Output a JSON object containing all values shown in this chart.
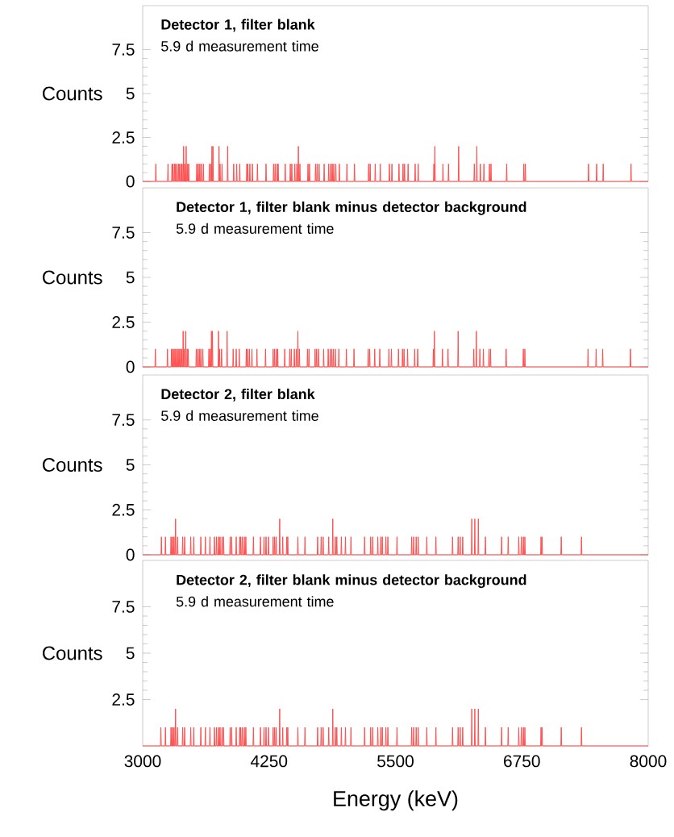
{
  "chart_data": [
    {
      "type": "line",
      "title": "Detector 1, filter blank",
      "subtitle": "5.9 d measurement time",
      "ylabel": "Counts",
      "color": "#ff4d4d",
      "xlim": [
        3000,
        8000
      ],
      "ylim": [
        0,
        10
      ],
      "yticks": [
        0,
        2.5,
        5,
        7.5
      ],
      "tick_labels": "y",
      "x": [
        3000,
        3126,
        3130,
        3134,
        3246,
        3250,
        3254,
        3286,
        3290,
        3294,
        3296,
        3300,
        3304,
        3311,
        3315,
        3319,
        3321,
        3325,
        3329,
        3336,
        3340,
        3344,
        3351,
        3355,
        3359,
        3361,
        3365,
        3369,
        3376,
        3380,
        3384,
        3386,
        3390,
        3394,
        3401,
        3405,
        3409,
        3411,
        3415,
        3419,
        3426,
        3430,
        3434,
        3441,
        3445,
        3449,
        3451,
        3455,
        3459,
        3531,
        3535,
        3539,
        3546,
        3550,
        3554,
        3561,
        3565,
        3569,
        3576,
        3580,
        3584,
        3596,
        3600,
        3604,
        3656,
        3660,
        3664,
        3671,
        3675,
        3679,
        3681,
        3685,
        3689,
        3691,
        3695,
        3699,
        3751,
        3755,
        3759,
        3761,
        3765,
        3769,
        3781,
        3785,
        3789,
        3836,
        3840,
        3844,
        3896,
        3900,
        3904,
        3926,
        3930,
        3934,
        3956,
        3960,
        3964,
        4026,
        4030,
        4034,
        4036,
        4040,
        4044,
        4056,
        4060,
        4064,
        4081,
        4085,
        4089,
        4131,
        4135,
        4139,
        4216,
        4220,
        4224,
        4291,
        4295,
        4299,
        4306,
        4310,
        4314,
        4326,
        4330,
        4334,
        4336,
        4340,
        4344,
        4406,
        4410,
        4414,
        4456,
        4460,
        4464,
        4471,
        4475,
        4479,
        4501,
        4505,
        4509,
        4521,
        4525,
        4529,
        4536,
        4540,
        4544,
        4551,
        4555,
        4559,
        4631,
        4635,
        4639,
        4646,
        4650,
        4654,
        4706,
        4710,
        4714,
        4721,
        4725,
        4729,
        4741,
        4745,
        4749,
        4791,
        4795,
        4799,
        4836,
        4840,
        4844,
        4856,
        4860,
        4864,
        4871,
        4875,
        4879,
        4886,
        4890,
        4894,
        4906,
        4910,
        4914,
        4941,
        4945,
        4949,
        5016,
        5020,
        5024,
        5091,
        5095,
        5099,
        5231,
        5235,
        5239,
        5246,
        5250,
        5254,
        5296,
        5300,
        5304,
        5346,
        5350,
        5354,
        5436,
        5440,
        5444,
        5461,
        5465,
        5469,
        5531,
        5535,
        5539,
        5571,
        5575,
        5579,
        5586,
        5590,
        5594,
        5621,
        5625,
        5629,
        5691,
        5695,
        5699,
        5721,
        5725,
        5729,
        5876,
        5880,
        5884,
        5886,
        5890,
        5894,
        5966,
        5970,
        5974,
        6021,
        6025,
        6029,
        6121,
        6125,
        6129,
        6276,
        6280,
        6284,
        6301,
        6305,
        6309,
        6336,
        6340,
        6344,
        6371,
        6375,
        6379,
        6426,
        6430,
        6434,
        6441,
        6445,
        6449,
        6596,
        6600,
        6604,
        6766,
        6770,
        6774,
        6781,
        6785,
        6789,
        7406,
        7410,
        7414,
        7486,
        7490,
        7494,
        7551,
        7555,
        7559,
        7826,
        7830,
        7834,
        8000
      ],
      "values": [
        0,
        0,
        1,
        0,
        0,
        1,
        0,
        0,
        1,
        0,
        0,
        1,
        0,
        0,
        1,
        0,
        0,
        1,
        0,
        0,
        1,
        0,
        0,
        1,
        0,
        0,
        1,
        0,
        0,
        1,
        0,
        0,
        1,
        0,
        0,
        2,
        0,
        0,
        1,
        0,
        0,
        2,
        0,
        0,
        1,
        0,
        0,
        1,
        0,
        0,
        1,
        0,
        0,
        1,
        0,
        0,
        1,
        0,
        0,
        1,
        0,
        0,
        1,
        0,
        0,
        1,
        0,
        0,
        1,
        0,
        0,
        2,
        0,
        0,
        2,
        0,
        0,
        2,
        0,
        0,
        1,
        0,
        0,
        1,
        0,
        0,
        2,
        0,
        0,
        1,
        0,
        0,
        1,
        0,
        0,
        1,
        0,
        0,
        1,
        0,
        0,
        1,
        0,
        0,
        1,
        0,
        0,
        1,
        0,
        0,
        1,
        0,
        0,
        1,
        0,
        0,
        1,
        0,
        0,
        1,
        0,
        0,
        1,
        0,
        0,
        1,
        0,
        0,
        1,
        0,
        0,
        1,
        0,
        0,
        1,
        0,
        0,
        1,
        0,
        0,
        1,
        0,
        0,
        2,
        0,
        0,
        1,
        0,
        0,
        1,
        0,
        0,
        1,
        0,
        0,
        1,
        0,
        0,
        1,
        0,
        0,
        1,
        0,
        0,
        1,
        0,
        0,
        1,
        0,
        0,
        1,
        0,
        0,
        1,
        0,
        0,
        1,
        0,
        0,
        1,
        0,
        0,
        1,
        0,
        0,
        1,
        0,
        0,
        1,
        0,
        0,
        1,
        0,
        0,
        1,
        0,
        0,
        1,
        0,
        0,
        1,
        0,
        0,
        1,
        0,
        0,
        1,
        0,
        0,
        1,
        0,
        0,
        1,
        0,
        0,
        1,
        0,
        0,
        1,
        0,
        0,
        1,
        0,
        0,
        1,
        0,
        0,
        1,
        0,
        0,
        2,
        0,
        0,
        1,
        0,
        0,
        1,
        0,
        0,
        2,
        0,
        0,
        1,
        0,
        0,
        2,
        0,
        0,
        1,
        0,
        0,
        1,
        0,
        0,
        1,
        0,
        0,
        1,
        0,
        0,
        1,
        0,
        0,
        1,
        0,
        0,
        1,
        0,
        0,
        1,
        0,
        0,
        1,
        0,
        0,
        1,
        0,
        0,
        1,
        0,
        0
      ]
    },
    {
      "type": "line",
      "title": "Detector 1, filter blank minus detector background",
      "subtitle": "5.9 d measurement time",
      "ylabel": "Counts",
      "color": "#ff4d4d",
      "xlim": [
        3000,
        8000
      ],
      "ylim": [
        0,
        10
      ],
      "yticks": [
        0,
        2.5,
        5,
        7.5
      ],
      "tick_labels": "y",
      "x": [
        3000,
        3121,
        3125,
        3129,
        3241,
        3245,
        3249,
        3281,
        3285,
        3289,
        3291,
        3295,
        3299,
        3306,
        3310,
        3314,
        3316,
        3320,
        3324,
        3331,
        3335,
        3339,
        3346,
        3350,
        3354,
        3356,
        3360,
        3364,
        3371,
        3375,
        3379,
        3381,
        3385,
        3389,
        3396,
        3400,
        3404,
        3406,
        3410,
        3414,
        3421,
        3425,
        3429,
        3436,
        3440,
        3444,
        3446,
        3450,
        3454,
        3526,
        3530,
        3534,
        3541,
        3545,
        3549,
        3556,
        3560,
        3564,
        3571,
        3575,
        3579,
        3591,
        3595,
        3599,
        3651,
        3655,
        3659,
        3666,
        3670,
        3674,
        3676,
        3680,
        3684,
        3686,
        3690,
        3694,
        3746,
        3750,
        3754,
        3756,
        3760,
        3764,
        3776,
        3780,
        3784,
        3831,
        3835,
        3839,
        3891,
        3895,
        3899,
        3921,
        3925,
        3929,
        3951,
        3955,
        3959,
        4021,
        4025,
        4029,
        4031,
        4035,
        4039,
        4051,
        4055,
        4059,
        4076,
        4080,
        4084,
        4126,
        4130,
        4134,
        4211,
        4215,
        4219,
        4286,
        4290,
        4294,
        4301,
        4305,
        4309,
        4321,
        4325,
        4329,
        4331,
        4335,
        4339,
        4401,
        4405,
        4409,
        4451,
        4455,
        4459,
        4466,
        4470,
        4474,
        4496,
        4500,
        4504,
        4516,
        4520,
        4524,
        4531,
        4535,
        4539,
        4546,
        4550,
        4554,
        4626,
        4630,
        4634,
        4641,
        4645,
        4649,
        4701,
        4705,
        4709,
        4716,
        4720,
        4724,
        4736,
        4740,
        4744,
        4786,
        4790,
        4794,
        4831,
        4835,
        4839,
        4851,
        4855,
        4859,
        4866,
        4870,
        4874,
        4881,
        4885,
        4889,
        4901,
        4905,
        4909,
        4936,
        4940,
        4944,
        5011,
        5015,
        5019,
        5086,
        5090,
        5094,
        5226,
        5230,
        5234,
        5241,
        5245,
        5249,
        5291,
        5295,
        5299,
        5341,
        5345,
        5349,
        5431,
        5435,
        5439,
        5456,
        5460,
        5464,
        5526,
        5530,
        5534,
        5566,
        5570,
        5574,
        5581,
        5585,
        5589,
        5616,
        5620,
        5624,
        5686,
        5690,
        5694,
        5716,
        5720,
        5724,
        5871,
        5875,
        5879,
        5881,
        5885,
        5889,
        5961,
        5965,
        5969,
        6016,
        6020,
        6024,
        6116,
        6120,
        6124,
        6271,
        6275,
        6279,
        6296,
        6300,
        6304,
        6331,
        6335,
        6339,
        6366,
        6370,
        6374,
        6421,
        6425,
        6429,
        6436,
        6440,
        6444,
        6591,
        6595,
        6599,
        6761,
        6765,
        6769,
        6776,
        6780,
        6784,
        7401,
        7405,
        7409,
        7481,
        7485,
        7489,
        7546,
        7550,
        7554,
        7821,
        7825,
        7829,
        8000
      ],
      "values": [
        0,
        0,
        1,
        0,
        0,
        1,
        0,
        0,
        1,
        0,
        0,
        1,
        0,
        0,
        1,
        0,
        0,
        1,
        0,
        0,
        1,
        0,
        0,
        1,
        0,
        0,
        1,
        0,
        0,
        1,
        0,
        0,
        1,
        0,
        0,
        2,
        0,
        0,
        1,
        0,
        0,
        2,
        0,
        0,
        1,
        0,
        0,
        1,
        0,
        0,
        1,
        0,
        0,
        1,
        0,
        0,
        1,
        0,
        0,
        1,
        0,
        0,
        1,
        0,
        0,
        1,
        0,
        0,
        1,
        0,
        0,
        2,
        0,
        0,
        2,
        0,
        0,
        2,
        0,
        0,
        1,
        0,
        0,
        1,
        0,
        0,
        2,
        0,
        0,
        1,
        0,
        0,
        1,
        0,
        0,
        1,
        0,
        0,
        1,
        0,
        0,
        1,
        0,
        0,
        1,
        0,
        0,
        1,
        0,
        0,
        1,
        0,
        0,
        1,
        0,
        0,
        1,
        0,
        0,
        1,
        0,
        0,
        1,
        0,
        0,
        1,
        0,
        0,
        1,
        0,
        0,
        1,
        0,
        0,
        1,
        0,
        0,
        1,
        0,
        0,
        1,
        0,
        0,
        2,
        0,
        0,
        1,
        0,
        0,
        1,
        0,
        0,
        1,
        0,
        0,
        1,
        0,
        0,
        1,
        0,
        0,
        1,
        0,
        0,
        1,
        0,
        0,
        1,
        0,
        0,
        1,
        0,
        0,
        1,
        0,
        0,
        1,
        0,
        0,
        1,
        0,
        0,
        1,
        0,
        0,
        1,
        0,
        0,
        1,
        0,
        0,
        1,
        0,
        0,
        1,
        0,
        0,
        1,
        0,
        0,
        1,
        0,
        0,
        1,
        0,
        0,
        1,
        0,
        0,
        1,
        0,
        0,
        1,
        0,
        0,
        1,
        0,
        0,
        1,
        0,
        0,
        1,
        0,
        0,
        1,
        0,
        0,
        1,
        0,
        0,
        2,
        0,
        0,
        1,
        0,
        0,
        1,
        0,
        0,
        2,
        0,
        0,
        1,
        0,
        0,
        2,
        0,
        0,
        1,
        0,
        0,
        1,
        0,
        0,
        1,
        0,
        0,
        1,
        0,
        0,
        1,
        0,
        0,
        1,
        0,
        0,
        1,
        0,
        0,
        1,
        0,
        0,
        1,
        0,
        0,
        1,
        0,
        0,
        1,
        0,
        0
      ]
    },
    {
      "type": "line",
      "title": "Detector 2, filter blank",
      "subtitle": "5.9 d measurement time",
      "ylabel": "Counts",
      "color": "#ff4d4d",
      "xlim": [
        3000,
        8000
      ],
      "ylim": [
        0,
        10
      ],
      "yticks": [
        0,
        2.5,
        5,
        7.5
      ],
      "tick_labels": "y",
      "x": [
        3000,
        3181,
        3185,
        3189,
        3221,
        3225,
        3229,
        3276,
        3280,
        3284,
        3291,
        3295,
        3299,
        3306,
        3310,
        3314,
        3321,
        3325,
        3329,
        3341,
        3345,
        3349,
        3391,
        3395,
        3399,
        3411,
        3415,
        3419,
        3471,
        3475,
        3479,
        3501,
        3505,
        3509,
        3571,
        3575,
        3579,
        3616,
        3620,
        3624,
        3661,
        3665,
        3669,
        3706,
        3710,
        3714,
        3726,
        3730,
        3734,
        3746,
        3750,
        3754,
        3761,
        3765,
        3769,
        3781,
        3785,
        3789,
        3796,
        3800,
        3804,
        3861,
        3865,
        3869,
        3876,
        3880,
        3884,
        3921,
        3925,
        3929,
        3956,
        3960,
        3964,
        3966,
        3970,
        3974,
        3981,
        3985,
        3989,
        4001,
        4005,
        4009,
        4016,
        4020,
        4024,
        4091,
        4095,
        4099,
        4161,
        4165,
        4169,
        4196,
        4200,
        4204,
        4216,
        4220,
        4224,
        4241,
        4245,
        4249,
        4286,
        4290,
        4294,
        4301,
        4305,
        4309,
        4316,
        4320,
        4324,
        4351,
        4355,
        4359,
        4381,
        4385,
        4389,
        4421,
        4425,
        4429,
        4431,
        4435,
        4439,
        4531,
        4535,
        4539,
        4601,
        4605,
        4609,
        4726,
        4730,
        4734,
        4761,
        4765,
        4769,
        4781,
        4785,
        4789,
        4836,
        4840,
        4844,
        4876,
        4880,
        4884,
        4901,
        4905,
        4909,
        4916,
        4920,
        4924,
        4961,
        4965,
        4969,
        5001,
        5005,
        5009,
        5056,
        5060,
        5064,
        5191,
        5195,
        5199,
        5251,
        5255,
        5259,
        5271,
        5275,
        5279,
        5321,
        5325,
        5329,
        5351,
        5355,
        5359,
        5366,
        5370,
        5374,
        5401,
        5405,
        5409,
        5421,
        5425,
        5429,
        5511,
        5515,
        5519,
        5656,
        5660,
        5664,
        5676,
        5680,
        5684,
        5701,
        5705,
        5709,
        5721,
        5725,
        5729,
        5806,
        5810,
        5814,
        5896,
        5900,
        5904,
        6061,
        6065,
        6069,
        6116,
        6120,
        6124,
        6136,
        6140,
        6144,
        6161,
        6165,
        6169,
        6251,
        6255,
        6259,
        6281,
        6285,
        6289,
        6316,
        6320,
        6324,
        6386,
        6390,
        6394,
        6546,
        6550,
        6554,
        6611,
        6615,
        6619,
        6716,
        6720,
        6724,
        6741,
        6745,
        6749,
        6761,
        6765,
        6769,
        6776,
        6780,
        6784,
        6936,
        6940,
        6944,
        6946,
        6950,
        6954,
        7136,
        7140,
        7144,
        7336,
        7340,
        7344,
        8000
      ],
      "values": [
        0,
        0,
        1,
        0,
        0,
        1,
        0,
        0,
        1,
        0,
        0,
        1,
        0,
        0,
        1,
        0,
        0,
        2,
        0,
        0,
        1,
        0,
        0,
        1,
        0,
        0,
        1,
        0,
        0,
        1,
        0,
        0,
        1,
        0,
        0,
        1,
        0,
        0,
        1,
        0,
        0,
        1,
        0,
        0,
        1,
        0,
        0,
        1,
        0,
        0,
        1,
        0,
        0,
        1,
        0,
        0,
        1,
        0,
        0,
        1,
        0,
        0,
        1,
        0,
        0,
        1,
        0,
        0,
        1,
        0,
        0,
        1,
        0,
        0,
        1,
        0,
        0,
        1,
        0,
        0,
        1,
        0,
        0,
        1,
        0,
        0,
        1,
        0,
        0,
        1,
        0,
        0,
        1,
        0,
        0,
        1,
        0,
        0,
        1,
        0,
        0,
        1,
        0,
        0,
        1,
        0,
        0,
        1,
        0,
        0,
        2,
        0,
        0,
        1,
        0,
        0,
        1,
        0,
        0,
        1,
        0,
        0,
        1,
        0,
        0,
        1,
        0,
        0,
        1,
        0,
        0,
        1,
        0,
        0,
        1,
        0,
        0,
        1,
        0,
        0,
        2,
        0,
        0,
        1,
        0,
        0,
        1,
        0,
        0,
        1,
        0,
        0,
        1,
        0,
        0,
        1,
        0,
        0,
        1,
        0,
        0,
        1,
        0,
        0,
        1,
        0,
        0,
        1,
        0,
        0,
        1,
        0,
        0,
        1,
        0,
        0,
        1,
        0,
        0,
        1,
        0,
        0,
        1,
        0,
        0,
        1,
        0,
        0,
        1,
        0,
        0,
        1,
        0,
        0,
        1,
        0,
        0,
        1,
        0,
        0,
        1,
        0,
        0,
        1,
        0,
        0,
        1,
        0,
        0,
        1,
        0,
        0,
        1,
        0,
        0,
        2,
        0,
        0,
        2,
        0,
        0,
        2,
        0,
        0,
        1,
        0,
        0,
        1,
        0,
        0,
        1,
        0,
        0,
        1,
        0,
        0,
        1,
        0,
        0,
        1,
        0,
        0,
        1,
        0,
        0,
        1,
        0,
        0,
        1,
        0,
        0,
        1,
        0,
        0,
        1,
        0,
        0
      ]
    },
    {
      "type": "line",
      "title": "Detector 2, filter blank minus detector background",
      "subtitle": "5.9 d measurement time",
      "ylabel": "Counts",
      "xlabel": "Energy (keV)",
      "color": "#ff4d4d",
      "xlim": [
        3000,
        8000
      ],
      "ylim": [
        0,
        10
      ],
      "yticks": [
        2.5,
        5,
        7.5
      ],
      "xticks": [
        3000,
        4250,
        5500,
        6750,
        8000
      ],
      "x": [
        3000,
        3176,
        3180,
        3184,
        3221,
        3225,
        3229,
        3276,
        3280,
        3284,
        3291,
        3295,
        3299,
        3306,
        3310,
        3314,
        3321,
        3325,
        3329,
        3341,
        3345,
        3349,
        3391,
        3395,
        3399,
        3411,
        3415,
        3419,
        3471,
        3475,
        3479,
        3501,
        3505,
        3509,
        3571,
        3575,
        3579,
        3616,
        3620,
        3624,
        3661,
        3665,
        3669,
        3706,
        3710,
        3714,
        3726,
        3730,
        3734,
        3746,
        3750,
        3754,
        3761,
        3765,
        3769,
        3781,
        3785,
        3789,
        3796,
        3800,
        3804,
        3861,
        3865,
        3869,
        3876,
        3880,
        3884,
        3921,
        3925,
        3929,
        3956,
        3960,
        3964,
        3966,
        3970,
        3974,
        3981,
        3985,
        3989,
        4001,
        4005,
        4009,
        4016,
        4020,
        4024,
        4091,
        4095,
        4099,
        4161,
        4165,
        4169,
        4196,
        4200,
        4204,
        4216,
        4220,
        4224,
        4241,
        4245,
        4249,
        4286,
        4290,
        4294,
        4301,
        4305,
        4309,
        4316,
        4320,
        4324,
        4351,
        4355,
        4359,
        4381,
        4385,
        4389,
        4421,
        4425,
        4429,
        4431,
        4435,
        4439,
        4531,
        4535,
        4539,
        4601,
        4605,
        4609,
        4726,
        4730,
        4734,
        4761,
        4765,
        4769,
        4781,
        4785,
        4789,
        4836,
        4840,
        4844,
        4876,
        4880,
        4884,
        4901,
        4905,
        4909,
        4916,
        4920,
        4924,
        4961,
        4965,
        4969,
        5001,
        5005,
        5009,
        5056,
        5060,
        5064,
        5191,
        5195,
        5199,
        5251,
        5255,
        5259,
        5271,
        5275,
        5279,
        5321,
        5325,
        5329,
        5351,
        5355,
        5359,
        5366,
        5370,
        5374,
        5401,
        5405,
        5409,
        5421,
        5425,
        5429,
        5511,
        5515,
        5519,
        5656,
        5660,
        5664,
        5676,
        5680,
        5684,
        5701,
        5705,
        5709,
        5721,
        5725,
        5729,
        5806,
        5810,
        5814,
        5896,
        5900,
        5904,
        6061,
        6065,
        6069,
        6116,
        6120,
        6124,
        6136,
        6140,
        6144,
        6161,
        6165,
        6169,
        6251,
        6255,
        6259,
        6281,
        6285,
        6289,
        6316,
        6320,
        6324,
        6386,
        6390,
        6394,
        6546,
        6550,
        6554,
        6611,
        6615,
        6619,
        6716,
        6720,
        6724,
        6741,
        6745,
        6749,
        6761,
        6765,
        6769,
        6776,
        6780,
        6784,
        6936,
        6940,
        6944,
        6946,
        6950,
        6954,
        7136,
        7140,
        7144,
        7336,
        7340,
        7344,
        8000
      ],
      "values": [
        0,
        0,
        1,
        0,
        0,
        1,
        0,
        0,
        1,
        0,
        0,
        1,
        0,
        0,
        1,
        0,
        0,
        2,
        0,
        0,
        1,
        0,
        0,
        1,
        0,
        0,
        1,
        0,
        0,
        1,
        0,
        0,
        1,
        0,
        0,
        1,
        0,
        0,
        1,
        0,
        0,
        1,
        0,
        0,
        1,
        0,
        0,
        1,
        0,
        0,
        1,
        0,
        0,
        1,
        0,
        0,
        1,
        0,
        0,
        1,
        0,
        0,
        1,
        0,
        0,
        1,
        0,
        0,
        1,
        0,
        0,
        1,
        0,
        0,
        1,
        0,
        0,
        1,
        0,
        0,
        1,
        0,
        0,
        1,
        0,
        0,
        1,
        0,
        0,
        1,
        0,
        0,
        1,
        0,
        0,
        1,
        0,
        0,
        1,
        0,
        0,
        1,
        0,
        0,
        1,
        0,
        0,
        1,
        0,
        0,
        2,
        0,
        0,
        1,
        0,
        0,
        1,
        0,
        0,
        1,
        0,
        0,
        1,
        0,
        0,
        1,
        0,
        0,
        1,
        0,
        0,
        1,
        0,
        0,
        1,
        0,
        0,
        1,
        0,
        0,
        2,
        0,
        0,
        1,
        0,
        0,
        1,
        0,
        0,
        1,
        0,
        0,
        1,
        0,
        0,
        1,
        0,
        0,
        1,
        0,
        0,
        1,
        0,
        0,
        1,
        0,
        0,
        1,
        0,
        0,
        1,
        0,
        0,
        1,
        0,
        0,
        1,
        0,
        0,
        1,
        0,
        0,
        1,
        0,
        0,
        1,
        0,
        0,
        1,
        0,
        0,
        1,
        0,
        0,
        1,
        0,
        0,
        1,
        0,
        0,
        1,
        0,
        0,
        1,
        0,
        0,
        1,
        0,
        0,
        1,
        0,
        0,
        1,
        0,
        0,
        2,
        0,
        0,
        2,
        0,
        0,
        2,
        0,
        0,
        1,
        0,
        0,
        1,
        0,
        0,
        1,
        0,
        0,
        1,
        0,
        0,
        1,
        0,
        0,
        1,
        0,
        0,
        1,
        0,
        0,
        1,
        0,
        0,
        1,
        0,
        0,
        1,
        0,
        0,
        1,
        0,
        0
      ]
    }
  ]
}
